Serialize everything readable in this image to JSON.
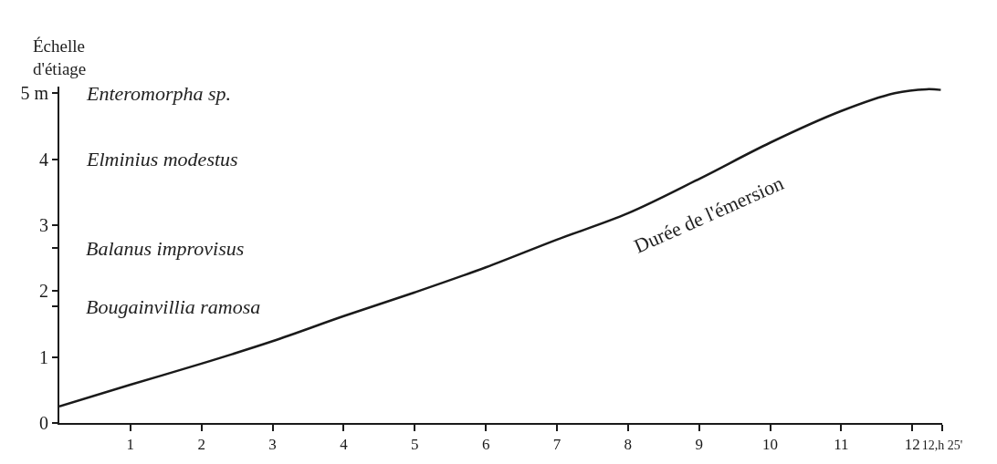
{
  "chart_data": {
    "type": "line",
    "ylabel": "Échelle\nd'étiage",
    "x": [
      0,
      1,
      2,
      3,
      4,
      5,
      6,
      7,
      8,
      9,
      10,
      11,
      11.75,
      12.2,
      12.4
    ],
    "series": [
      {
        "color": "#1a1a1a",
        "values": [
          0.25,
          0.58,
          0.9,
          1.24,
          1.62,
          1.98,
          2.36,
          2.78,
          3.18,
          3.7,
          4.25,
          4.73,
          5.0,
          5.06,
          5.05
        ]
      }
    ],
    "xlim": [
      0,
      12.42
    ],
    "xticks": [
      1,
      2,
      3,
      4,
      5,
      6,
      7,
      8,
      9,
      10,
      11,
      12,
      {
        "value": 12.42,
        "label": "12,h 25'"
      }
    ],
    "ylim": [
      0,
      5.1
    ],
    "yticks": [
      0,
      1,
      2,
      3,
      4,
      {
        "value": 5,
        "label": "5 m"
      },
      {
        "value": 1.77,
        "label": null
      },
      {
        "value": 2.66,
        "label": null
      }
    ],
    "annotations": [
      "Enteromorpha sp.",
      "Elminius modestus",
      "Balanus improvisus",
      "Bougainvillia ramosa",
      "Durée de l'émersion"
    ],
    "marker": "none",
    "line_style": "solid"
  }
}
